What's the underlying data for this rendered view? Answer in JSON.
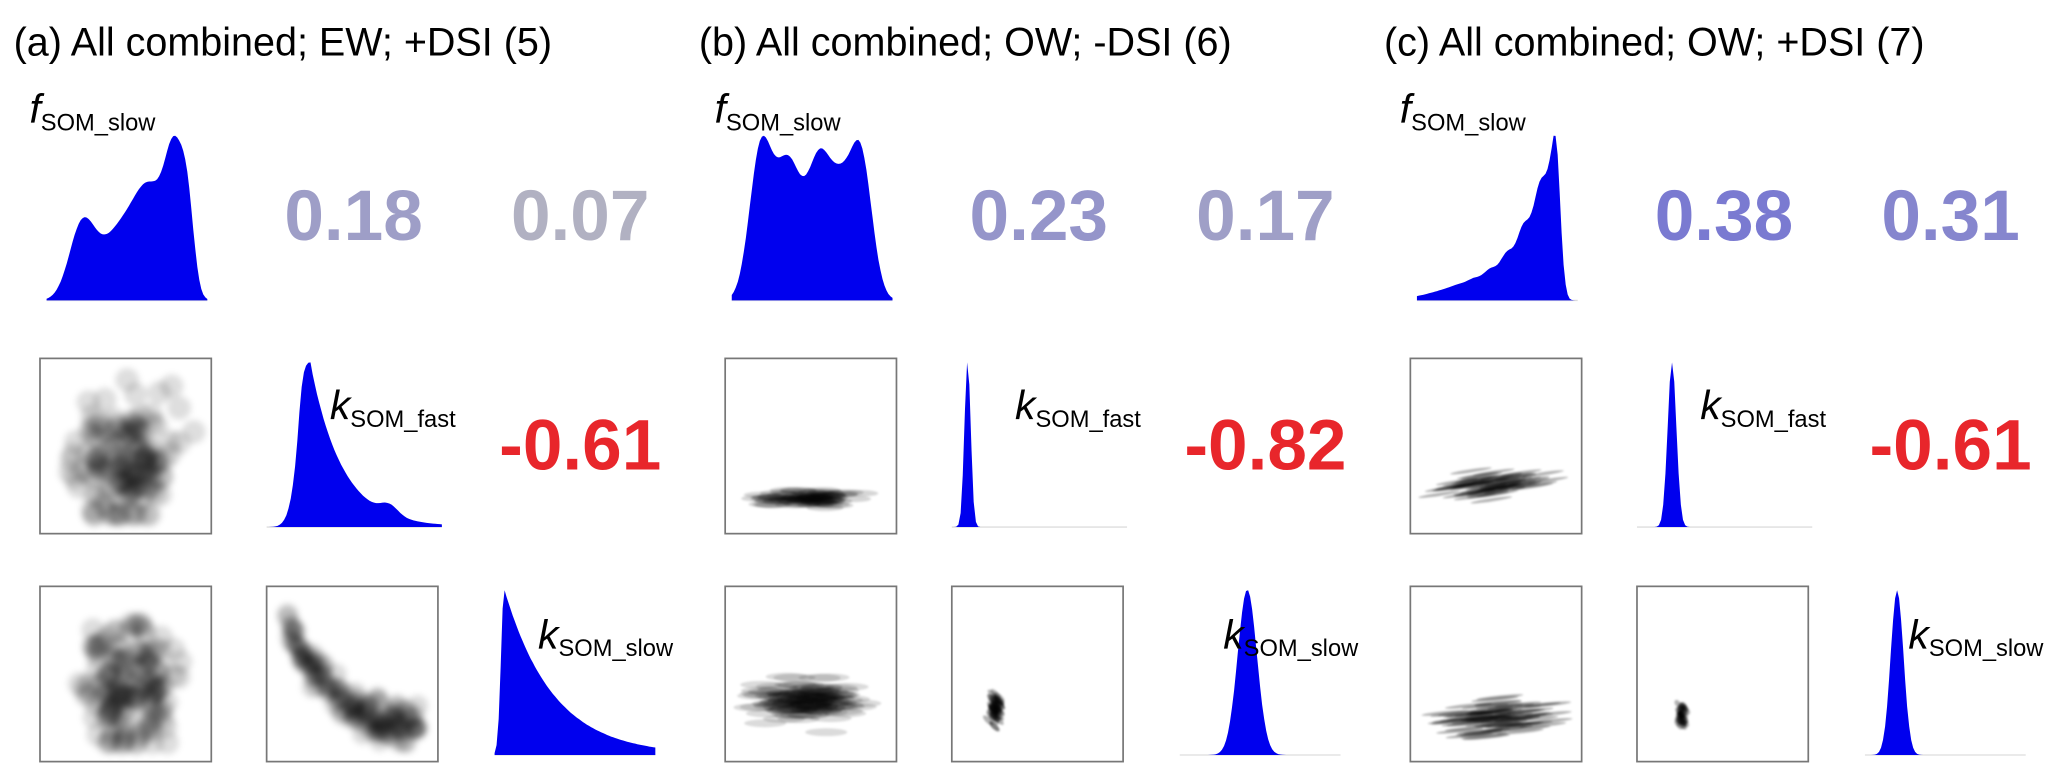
{
  "panels": [
    {
      "title": "(a) All combined; EW; +DSI (5)",
      "labels": [
        {
          "symbol": "f",
          "subscript": "SOM_slow"
        },
        {
          "symbol": "k",
          "subscript": "SOM_fast"
        },
        {
          "symbol": "k",
          "subscript": "SOM_slow"
        }
      ],
      "correlations": [
        0.18,
        0.07,
        -0.61
      ]
    },
    {
      "title": "(b) All combined; OW; -DSI (6)",
      "labels": [
        {
          "symbol": "f",
          "subscript": "SOM_slow"
        },
        {
          "symbol": "k",
          "subscript": "SOM_fast"
        },
        {
          "symbol": "k",
          "subscript": "SOM_slow"
        }
      ],
      "correlations": [
        0.23,
        0.17,
        -0.82
      ]
    },
    {
      "title": "(c) All combined; OW; +DSI (7)",
      "labels": [
        {
          "symbol": "f",
          "subscript": "SOM_slow"
        },
        {
          "symbol": "k",
          "subscript": "SOM_fast"
        },
        {
          "symbol": "k",
          "subscript": "SOM_slow"
        }
      ],
      "correlations": [
        0.38,
        0.31,
        -0.61
      ]
    }
  ]
}
